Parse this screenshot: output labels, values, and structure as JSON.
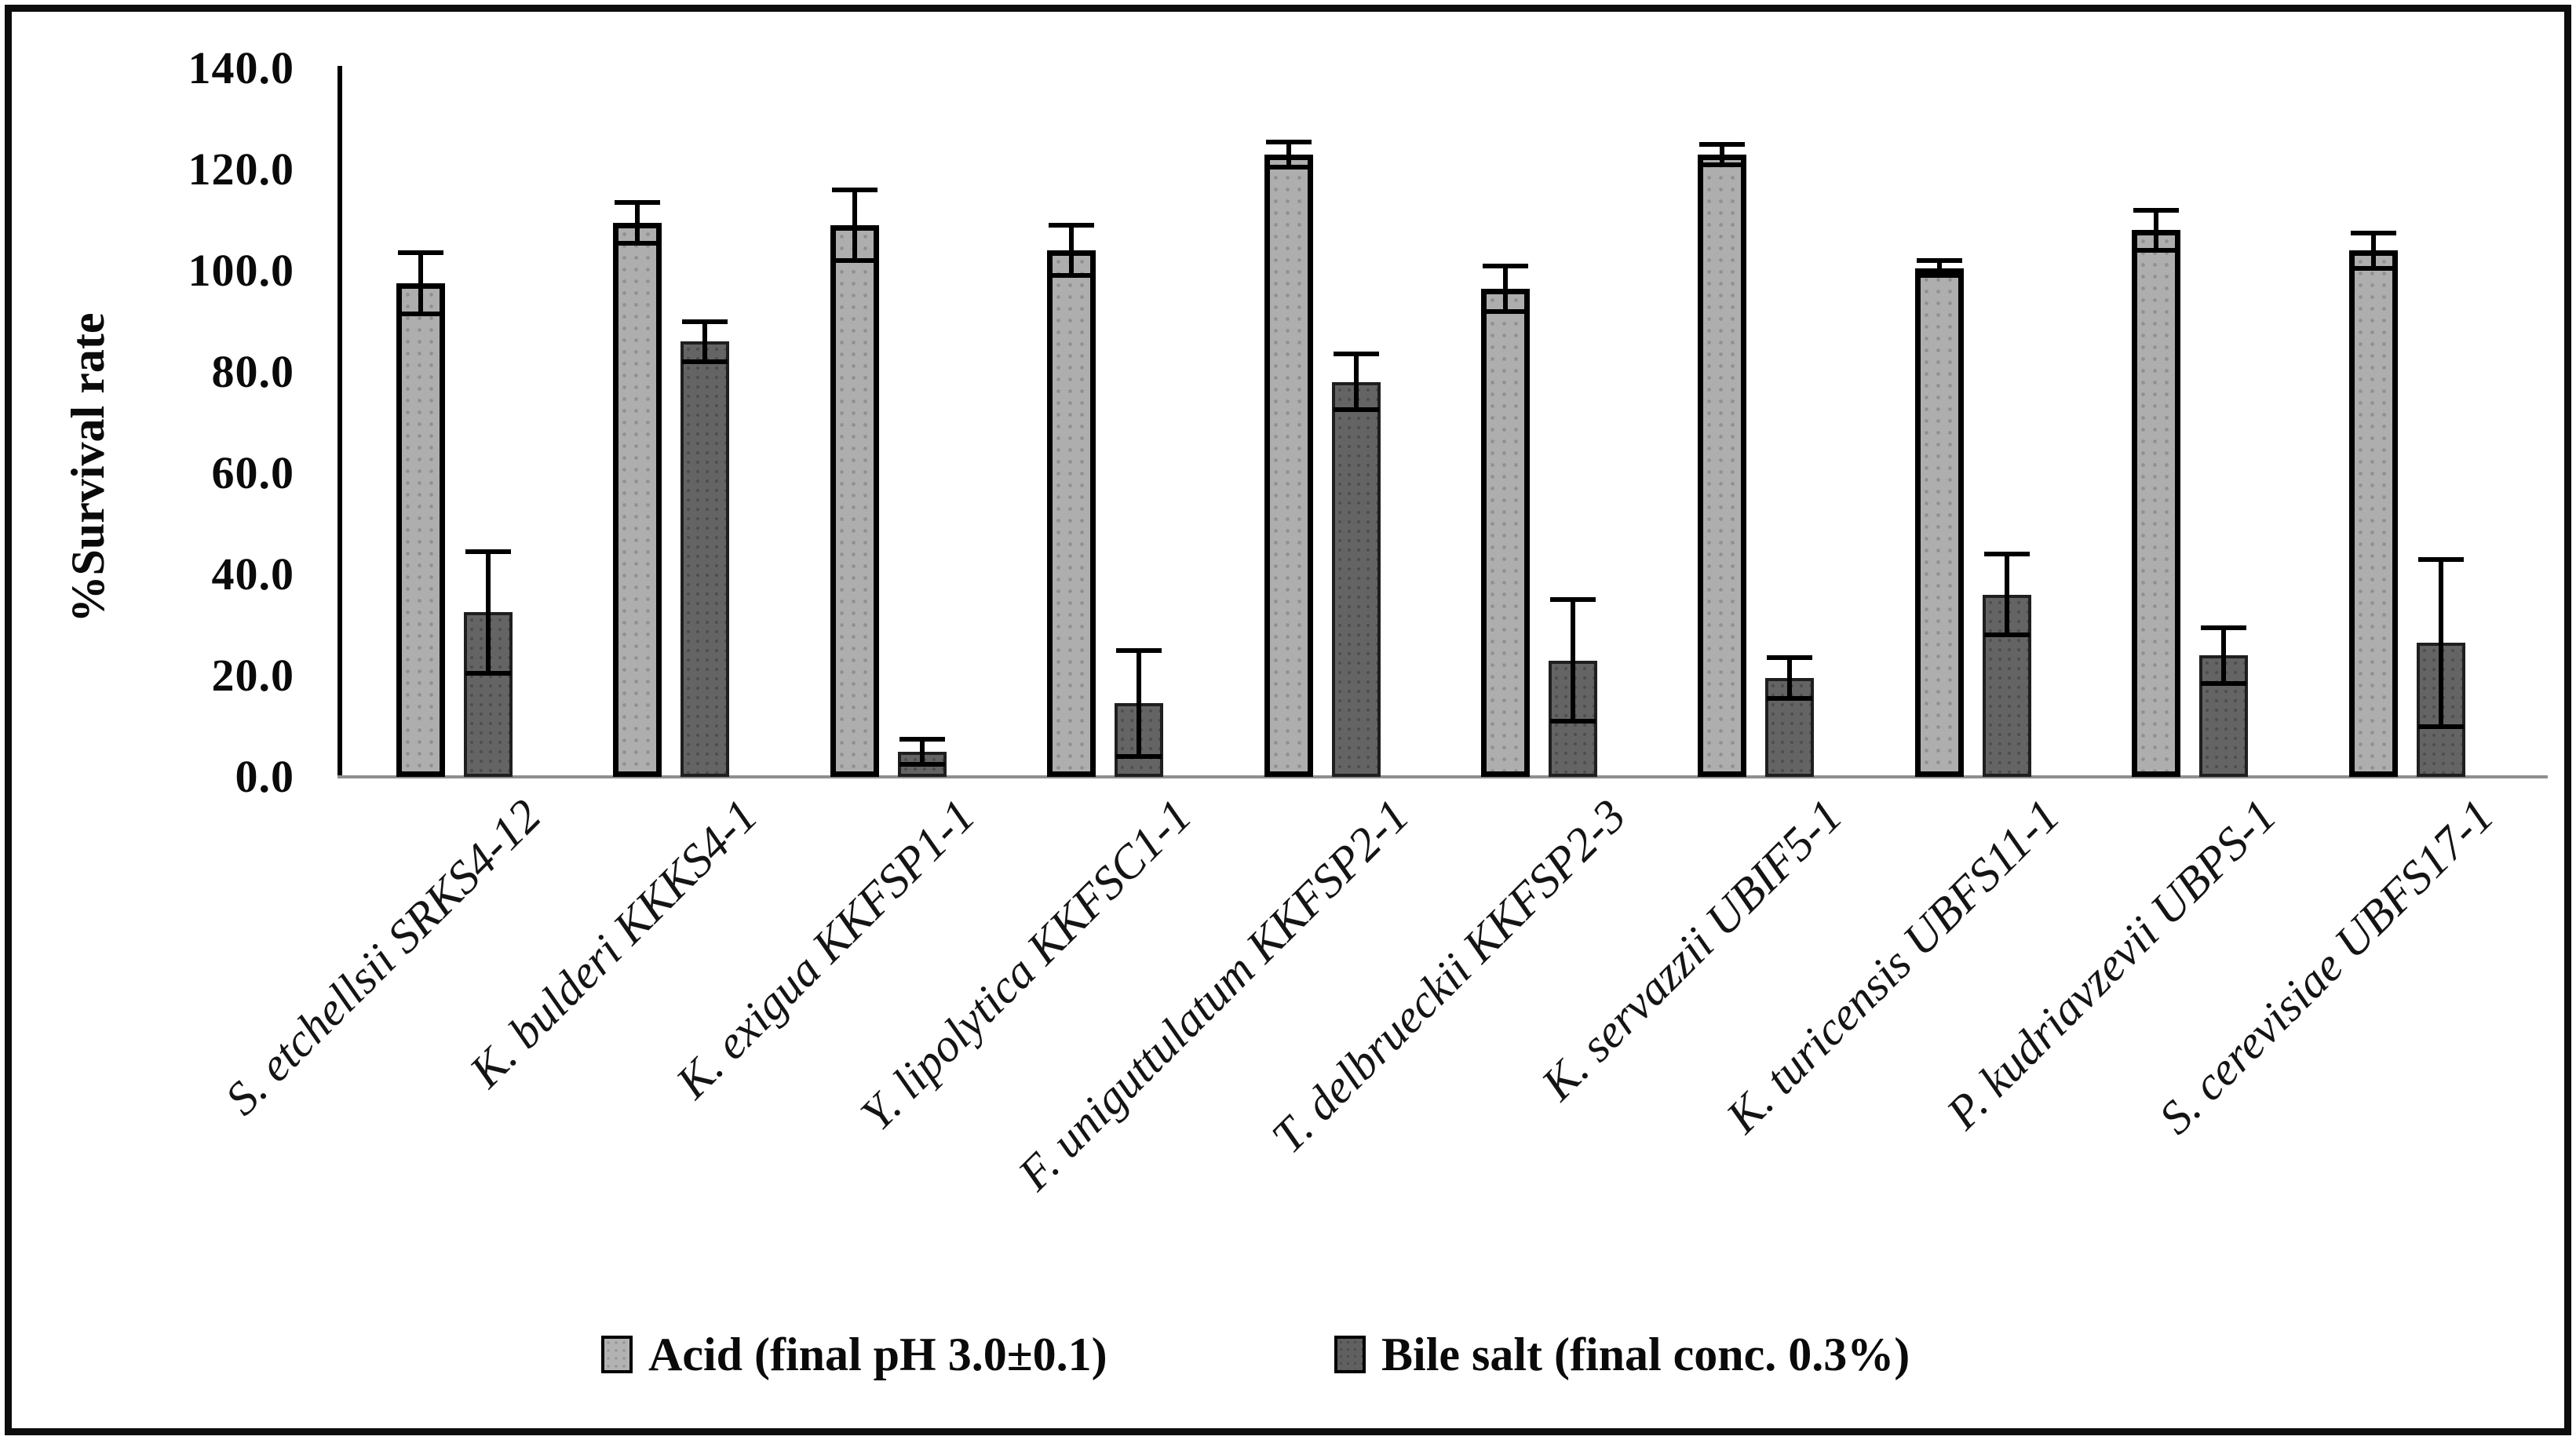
{
  "y_axis": {
    "title": "%Survival rate",
    "min": 0,
    "max": 140,
    "step": 20,
    "tick_labels": [
      "0.0",
      "20.0",
      "40.0",
      "60.0",
      "80.0",
      "100.0",
      "120.0",
      "140.0"
    ]
  },
  "chart_data": {
    "type": "bar",
    "title": "",
    "xlabel": "",
    "ylabel": "%Survival rate",
    "ylim": [
      0,
      140
    ],
    "ytick_step": 20,
    "grid": false,
    "legend_position": "bottom",
    "error_bars": true,
    "categories": [
      "S. etchellsii SRKS4-12",
      "K. bulderi KKKS4-1",
      "K. exigua KKFSP1-1",
      "Y. lipolytica KKFSC1-1",
      "F. uniguttulatum KKFSP2-1",
      "T. delbrueckii KKFSP2-3",
      "K. servazzii UBIF5-1",
      "K. turicensis UBFS11-1",
      "P. kudriavzevii UBPS-1",
      "S. cerevisiae UBFS17-1"
    ],
    "series": [
      {
        "name": "Acid (final pH 3.0±0.1)",
        "color": "#aeaeae",
        "values": [
          97.5,
          109.5,
          109.0,
          104.0,
          123.0,
          96.5,
          123.0,
          100.5,
          108.0,
          104.0
        ],
        "errors": [
          6.0,
          4.0,
          7.0,
          5.0,
          2.5,
          4.5,
          2.0,
          1.5,
          4.0,
          3.5
        ]
      },
      {
        "name": "Bile salt (final conc. 0.3%)",
        "color": "#646464",
        "values": [
          32.5,
          86.0,
          5.0,
          14.5,
          78.0,
          23.0,
          19.5,
          36.0,
          24.0,
          26.5
        ],
        "errors": [
          12.0,
          4.0,
          2.5,
          10.5,
          5.5,
          12.0,
          4.0,
          8.0,
          5.5,
          16.5
        ]
      }
    ]
  }
}
